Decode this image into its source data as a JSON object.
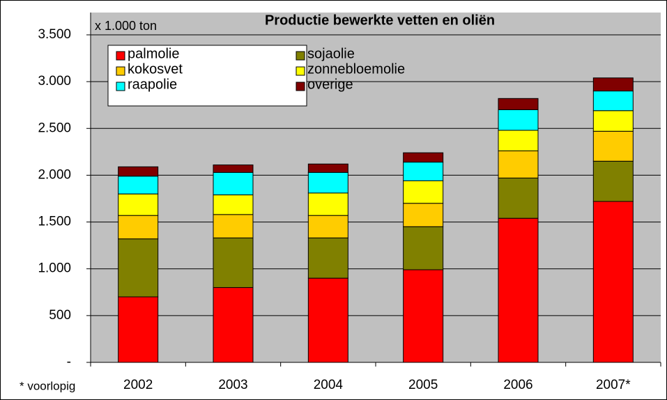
{
  "chart_data": {
    "type": "stacked-bar",
    "title": "Productie bewerkte vetten en oliën",
    "unit_label": "x 1.000 ton",
    "footnote": "* voorlopig",
    "categories": [
      "2002",
      "2003",
      "2004",
      "2005",
      "2006",
      "2007*"
    ],
    "series": [
      {
        "name": "palmolie",
        "color": "#ff0000",
        "values": [
          700,
          800,
          900,
          990,
          1540,
          1720
        ]
      },
      {
        "name": "sojaolie",
        "color": "#808000",
        "values": [
          620,
          530,
          430,
          460,
          430,
          430
        ]
      },
      {
        "name": "kokosvet",
        "color": "#ffcc00",
        "values": [
          250,
          250,
          240,
          250,
          290,
          320
        ]
      },
      {
        "name": "zonnebloemolie",
        "color": "#ffff00",
        "values": [
          230,
          210,
          240,
          240,
          220,
          220
        ]
      },
      {
        "name": "raapolie",
        "color": "#00ffff",
        "values": [
          190,
          240,
          220,
          200,
          220,
          210
        ]
      },
      {
        "name": "overige",
        "color": "#800000",
        "values": [
          100,
          80,
          90,
          100,
          120,
          140
        ]
      }
    ],
    "ylim": [
      0,
      3500
    ],
    "yticks": [
      {
        "value": 0,
        "label": "-"
      },
      500,
      {
        "value": 1000,
        "label": "1.000"
      },
      {
        "value": 1500,
        "label": "1.500"
      },
      {
        "value": 2000,
        "label": "2.000"
      },
      {
        "value": 2500,
        "label": "2.500"
      },
      {
        "value": 3000,
        "label": "3.000"
      },
      {
        "value": 3500,
        "label": "3.500"
      }
    ],
    "grid": true,
    "legend": "top-left"
  }
}
